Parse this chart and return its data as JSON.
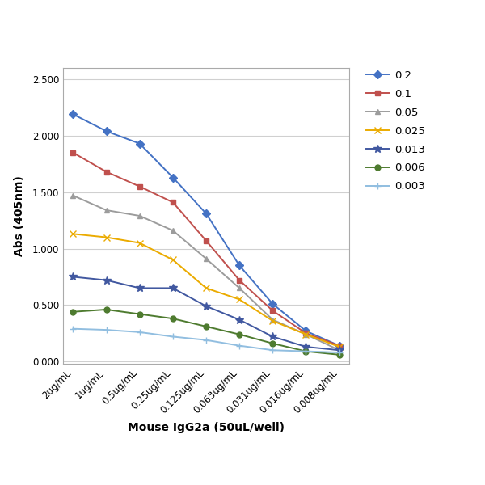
{
  "x_labels": [
    "2ug/mL",
    "1ug/mL",
    "0.5ug/mL",
    "0.25ug/mL",
    "0.125ug/mL",
    "0.063ug/mL",
    "0.031ug/mL",
    "0.016ug/mL",
    "0.008ug/mL"
  ],
  "series": [
    {
      "label": "0.2",
      "color": "#4472C4",
      "marker": "D",
      "markersize": 5,
      "markerfacecolor": "#4472C4",
      "values": [
        2.19,
        2.04,
        1.93,
        1.63,
        1.31,
        0.85,
        0.51,
        0.27,
        0.14
      ]
    },
    {
      "label": "0.1",
      "color": "#C0504D",
      "marker": "s",
      "markersize": 5,
      "markerfacecolor": "#C0504D",
      "values": [
        1.85,
        1.68,
        1.55,
        1.41,
        1.07,
        0.72,
        0.45,
        0.25,
        0.14
      ]
    },
    {
      "label": "0.05",
      "color": "#9C9C9C",
      "marker": "^",
      "markersize": 5,
      "markerfacecolor": "#9C9C9C",
      "values": [
        1.47,
        1.34,
        1.29,
        1.16,
        0.91,
        0.65,
        0.37,
        0.24,
        0.1
      ]
    },
    {
      "label": "0.025",
      "color": "#EBAB00",
      "marker": "x",
      "markersize": 6,
      "markerfacecolor": "#EBAB00",
      "values": [
        1.13,
        1.1,
        1.05,
        0.9,
        0.65,
        0.55,
        0.36,
        0.24,
        0.13
      ]
    },
    {
      "label": "0.013",
      "color": "#4158A0",
      "marker": "*",
      "markersize": 7,
      "markerfacecolor": "#4158A0",
      "values": [
        0.75,
        0.72,
        0.65,
        0.65,
        0.49,
        0.37,
        0.22,
        0.13,
        0.1
      ]
    },
    {
      "label": "0.006",
      "color": "#4E7B2F",
      "marker": "o",
      "markersize": 5,
      "markerfacecolor": "#4E7B2F",
      "values": [
        0.44,
        0.46,
        0.42,
        0.38,
        0.31,
        0.24,
        0.16,
        0.09,
        0.06
      ]
    },
    {
      "label": "0.003",
      "color": "#91BEE0",
      "marker": "+",
      "markersize": 6,
      "markerfacecolor": "#91BEE0",
      "values": [
        0.29,
        0.28,
        0.26,
        0.22,
        0.19,
        0.14,
        0.1,
        0.09,
        0.08
      ]
    }
  ],
  "ylabel": "Abs (405nm)",
  "xlabel": "Mouse IgG2a (50uL/well)",
  "ylim": [
    -0.02,
    2.6
  ],
  "yticks": [
    0.0,
    0.5,
    1.0,
    1.5,
    2.0,
    2.5
  ],
  "ytick_labels": [
    "0.000",
    "0.500",
    "1.000",
    "1.500",
    "2.000",
    "2.500"
  ],
  "figure_bg": "#FFFFFF",
  "plot_bg": "#FFFFFF",
  "border_color": "#AAAAAA",
  "grid_color": "#D0D0D0",
  "tick_fontsize": 8.5,
  "label_fontsize": 10,
  "legend_fontsize": 9.5,
  "linewidth": 1.4
}
